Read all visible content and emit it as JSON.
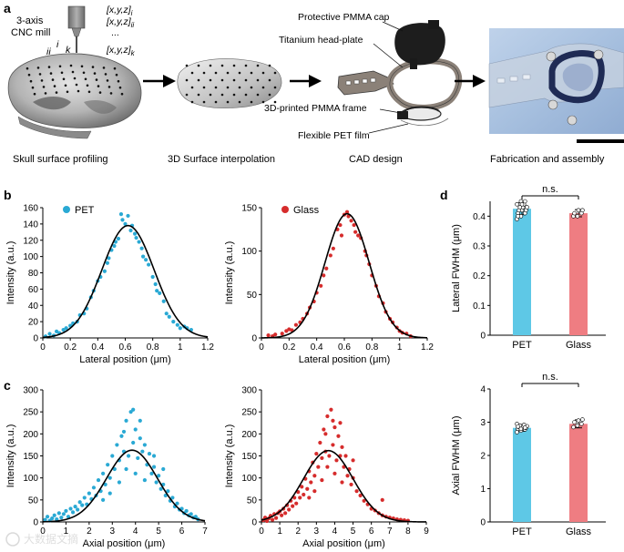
{
  "panel_a": {
    "label": "a",
    "cnc_label_line1": "3-axis",
    "cnc_label_line2": "CNC mill",
    "coords": [
      "[x,y,z]",
      "[x,y,z]",
      "...",
      "[x,y,z]"
    ],
    "coord_subscripts": [
      "i",
      "ii",
      "",
      "k"
    ],
    "point_labels": [
      "ii",
      "i",
      "k"
    ],
    "annotations": [
      "Protective PMMA cap",
      "Titanium head-plate",
      "3D-printed PMMA frame",
      "Flexible PET film"
    ],
    "captions": [
      "Skull surface profiling",
      "3D Surface interpolation",
      "CAD design",
      "Fabrication and assembly"
    ]
  },
  "panel_labels": {
    "b": "b",
    "c": "c",
    "d": "d"
  },
  "watermark": "大数据文摘",
  "colors": {
    "pet": "#2aa9d4",
    "glass": "#d62c2c",
    "pet_bar": "#5ec8e6",
    "glass_bar": "#ef7d82",
    "fit": "#000000"
  },
  "chart_data": [
    {
      "id": "b-pet",
      "type": "scatter",
      "legend": "PET",
      "xlabel": "Lateral position (μm)",
      "ylabel": "Intensity (a.u.)",
      "xlim": [
        0,
        1.2
      ],
      "ylim": [
        0,
        160
      ],
      "xticks": [
        "0",
        "0.2",
        "0.4",
        "0.6",
        "0.8",
        "1",
        "1.2"
      ],
      "yticks": [
        "0",
        "20",
        "40",
        "60",
        "80",
        "100",
        "120",
        "140",
        "160"
      ],
      "fit": {
        "amplitude": 138,
        "center": 0.62,
        "sigma": 0.19
      },
      "points": [
        [
          0.02,
          2
        ],
        [
          0.05,
          5
        ],
        [
          0.08,
          3
        ],
        [
          0.1,
          8
        ],
        [
          0.12,
          6
        ],
        [
          0.15,
          10
        ],
        [
          0.17,
          12
        ],
        [
          0.2,
          15
        ],
        [
          0.22,
          18
        ],
        [
          0.25,
          20
        ],
        [
          0.27,
          28
        ],
        [
          0.3,
          30
        ],
        [
          0.32,
          36
        ],
        [
          0.35,
          50
        ],
        [
          0.37,
          58
        ],
        [
          0.4,
          70
        ],
        [
          0.42,
          75
        ],
        [
          0.45,
          82
        ],
        [
          0.47,
          92
        ],
        [
          0.5,
          108
        ],
        [
          0.52,
          113
        ],
        [
          0.55,
          122
        ],
        [
          0.57,
          152
        ],
        [
          0.58,
          145
        ],
        [
          0.6,
          140
        ],
        [
          0.62,
          150
        ],
        [
          0.64,
          132
        ],
        [
          0.65,
          138
        ],
        [
          0.67,
          128
        ],
        [
          0.7,
          118
        ],
        [
          0.72,
          110
        ],
        [
          0.75,
          96
        ],
        [
          0.77,
          90
        ],
        [
          0.8,
          75
        ],
        [
          0.82,
          66
        ],
        [
          0.85,
          55
        ],
        [
          0.88,
          45
        ],
        [
          0.9,
          30
        ],
        [
          0.92,
          26
        ],
        [
          0.95,
          20
        ],
        [
          0.98,
          16
        ],
        [
          1.0,
          12
        ],
        [
          1.03,
          14
        ],
        [
          1.05,
          12
        ],
        [
          1.08,
          10
        ],
        [
          0.48,
          98
        ],
        [
          0.53,
          118
        ],
        [
          0.68,
          123
        ],
        [
          0.73,
          100
        ],
        [
          0.83,
          58
        ]
      ]
    },
    {
      "id": "b-glass",
      "type": "scatter",
      "legend": "Glass",
      "xlabel": "Lateral position (μm)",
      "ylabel": "Intensity (a.u.)",
      "xlim": [
        0,
        1.2
      ],
      "ylim": [
        0,
        150
      ],
      "xticks": [
        "0",
        "0.2",
        "0.4",
        "0.6",
        "0.8",
        "1",
        "1.2"
      ],
      "yticks": [
        "0",
        "50",
        "100",
        "150"
      ],
      "fit": {
        "amplitude": 143,
        "center": 0.62,
        "sigma": 0.16
      },
      "points": [
        [
          0.05,
          3
        ],
        [
          0.08,
          2
        ],
        [
          0.1,
          4
        ],
        [
          0.15,
          5
        ],
        [
          0.18,
          8
        ],
        [
          0.2,
          10
        ],
        [
          0.22,
          9
        ],
        [
          0.25,
          15
        ],
        [
          0.28,
          18
        ],
        [
          0.3,
          22
        ],
        [
          0.33,
          28
        ],
        [
          0.35,
          35
        ],
        [
          0.38,
          42
        ],
        [
          0.4,
          52
        ],
        [
          0.43,
          60
        ],
        [
          0.45,
          72
        ],
        [
          0.47,
          80
        ],
        [
          0.5,
          95
        ],
        [
          0.52,
          103
        ],
        [
          0.55,
          125
        ],
        [
          0.57,
          130
        ],
        [
          0.6,
          142
        ],
        [
          0.62,
          145
        ],
        [
          0.63,
          140
        ],
        [
          0.65,
          135
        ],
        [
          0.67,
          130
        ],
        [
          0.7,
          118
        ],
        [
          0.72,
          115
        ],
        [
          0.75,
          100
        ],
        [
          0.78,
          85
        ],
        [
          0.8,
          72
        ],
        [
          0.83,
          60
        ],
        [
          0.85,
          48
        ],
        [
          0.88,
          40
        ],
        [
          0.9,
          30
        ],
        [
          0.93,
          22
        ],
        [
          0.95,
          18
        ],
        [
          0.98,
          12
        ],
        [
          1.0,
          8
        ],
        [
          1.02,
          6
        ],
        [
          1.05,
          5
        ],
        [
          1.08,
          2
        ],
        [
          0.58,
          118
        ],
        [
          0.68,
          122
        ],
        [
          0.76,
          95
        ]
      ]
    },
    {
      "id": "c-pet",
      "type": "scatter",
      "xlabel": "Axial position (μm)",
      "ylabel": "Intensity (a.u.)",
      "xlim": [
        0,
        7
      ],
      "ylim": [
        0,
        300
      ],
      "xticks": [
        "0",
        "1",
        "2",
        "3",
        "4",
        "5",
        "6",
        "7"
      ],
      "yticks": [
        "0",
        "50",
        "100",
        "150",
        "200",
        "250",
        "300"
      ],
      "fit": {
        "amplitude": 163,
        "center": 3.85,
        "sigma": 1.1
      },
      "points": [
        [
          0.1,
          5
        ],
        [
          0.2,
          12
        ],
        [
          0.3,
          3
        ],
        [
          0.4,
          8
        ],
        [
          0.5,
          15
        ],
        [
          0.6,
          6
        ],
        [
          0.7,
          20
        ],
        [
          0.8,
          10
        ],
        [
          0.9,
          18
        ],
        [
          1.0,
          25
        ],
        [
          1.1,
          12
        ],
        [
          1.2,
          30
        ],
        [
          1.3,
          22
        ],
        [
          1.4,
          35
        ],
        [
          1.5,
          28
        ],
        [
          1.6,
          45
        ],
        [
          1.7,
          38
        ],
        [
          1.8,
          55
        ],
        [
          1.9,
          40
        ],
        [
          2.0,
          65
        ],
        [
          2.1,
          52
        ],
        [
          2.2,
          78
        ],
        [
          2.3,
          60
        ],
        [
          2.4,
          95
        ],
        [
          2.5,
          70
        ],
        [
          2.6,
          110
        ],
        [
          2.7,
          85
        ],
        [
          2.8,
          130
        ],
        [
          2.9,
          100
        ],
        [
          3.0,
          150
        ],
        [
          3.1,
          120
        ],
        [
          3.2,
          175
        ],
        [
          3.3,
          140
        ],
        [
          3.4,
          195
        ],
        [
          3.5,
          160
        ],
        [
          3.6,
          230
        ],
        [
          3.7,
          150
        ],
        [
          3.8,
          250
        ],
        [
          3.9,
          180
        ],
        [
          4.0,
          210
        ],
        [
          4.1,
          145
        ],
        [
          4.2,
          190
        ],
        [
          4.3,
          160
        ],
        [
          4.4,
          175
        ],
        [
          4.5,
          130
        ],
        [
          4.6,
          155
        ],
        [
          4.7,
          110
        ],
        [
          4.8,
          125
        ],
        [
          4.9,
          90
        ],
        [
          5.0,
          105
        ],
        [
          5.1,
          75
        ],
        [
          5.2,
          85
        ],
        [
          5.3,
          60
        ],
        [
          5.4,
          70
        ],
        [
          5.5,
          48
        ],
        [
          5.6,
          55
        ],
        [
          5.7,
          35
        ],
        [
          5.8,
          42
        ],
        [
          5.9,
          28
        ],
        [
          6.0,
          30
        ],
        [
          6.1,
          20
        ],
        [
          6.2,
          25
        ],
        [
          6.3,
          15
        ],
        [
          6.4,
          18
        ],
        [
          6.5,
          10
        ],
        [
          6.6,
          12
        ],
        [
          6.7,
          6
        ],
        [
          3.3,
          90
        ],
        [
          3.6,
          120
        ],
        [
          4.0,
          110
        ],
        [
          4.4,
          95
        ],
        [
          2.9,
          65
        ],
        [
          3.9,
          255
        ],
        [
          4.2,
          230
        ],
        [
          3.5,
          205
        ],
        [
          4.8,
          150
        ],
        [
          2.6,
          50
        ],
        [
          5.2,
          120
        ]
      ]
    },
    {
      "id": "c-glass",
      "type": "scatter",
      "xlabel": "Axial position (μm)",
      "ylabel": "Intensity (a.u.)",
      "xlim": [
        0,
        9
      ],
      "ylim": [
        0,
        300
      ],
      "xticks": [
        "0",
        "1",
        "2",
        "3",
        "4",
        "5",
        "6",
        "7",
        "8",
        "9"
      ],
      "yticks": [
        "0",
        "50",
        "100",
        "150",
        "200",
        "250",
        "300"
      ],
      "fit": {
        "amplitude": 162,
        "center": 3.65,
        "sigma": 1.35
      },
      "points": [
        [
          0.1,
          4
        ],
        [
          0.2,
          10
        ],
        [
          0.3,
          2
        ],
        [
          0.4,
          8
        ],
        [
          0.5,
          14
        ],
        [
          0.6,
          5
        ],
        [
          0.7,
          18
        ],
        [
          0.8,
          9
        ],
        [
          0.9,
          20
        ],
        [
          1.0,
          24
        ],
        [
          1.1,
          15
        ],
        [
          1.2,
          30
        ],
        [
          1.3,
          20
        ],
        [
          1.4,
          38
        ],
        [
          1.5,
          28
        ],
        [
          1.6,
          48
        ],
        [
          1.7,
          36
        ],
        [
          1.8,
          55
        ],
        [
          1.9,
          42
        ],
        [
          2.0,
          68
        ],
        [
          2.1,
          55
        ],
        [
          2.2,
          80
        ],
        [
          2.3,
          62
        ],
        [
          2.4,
          98
        ],
        [
          2.5,
          75
        ],
        [
          2.6,
          115
        ],
        [
          2.7,
          90
        ],
        [
          2.8,
          135
        ],
        [
          2.9,
          105
        ],
        [
          3.0,
          155
        ],
        [
          3.1,
          125
        ],
        [
          3.2,
          180
        ],
        [
          3.3,
          145
        ],
        [
          3.4,
          210
        ],
        [
          3.5,
          160
        ],
        [
          3.6,
          240
        ],
        [
          3.7,
          150
        ],
        [
          3.8,
          255
        ],
        [
          3.9,
          175
        ],
        [
          4.0,
          215
        ],
        [
          4.1,
          140
        ],
        [
          4.2,
          195
        ],
        [
          4.3,
          150
        ],
        [
          4.4,
          170
        ],
        [
          4.5,
          125
        ],
        [
          4.6,
          150
        ],
        [
          4.7,
          105
        ],
        [
          4.8,
          120
        ],
        [
          4.9,
          85
        ],
        [
          5.0,
          100
        ],
        [
          5.2,
          70
        ],
        [
          5.4,
          60
        ],
        [
          5.6,
          48
        ],
        [
          5.8,
          40
        ],
        [
          6.0,
          30
        ],
        [
          6.2,
          26
        ],
        [
          6.4,
          20
        ],
        [
          6.6,
          15
        ],
        [
          6.8,
          12
        ],
        [
          7.0,
          10
        ],
        [
          7.2,
          8
        ],
        [
          7.4,
          6
        ],
        [
          7.6,
          5
        ],
        [
          7.8,
          4
        ],
        [
          8.0,
          3
        ],
        [
          3.3,
          95
        ],
        [
          3.6,
          125
        ],
        [
          4.0,
          110
        ],
        [
          4.4,
          90
        ],
        [
          2.9,
          70
        ],
        [
          3.9,
          230
        ],
        [
          4.3,
          225
        ],
        [
          3.5,
          200
        ],
        [
          5.0,
          140
        ],
        [
          2.6,
          55
        ],
        [
          6.6,
          50
        ]
      ]
    },
    {
      "id": "d-lateral",
      "type": "bar",
      "categories": [
        "PET",
        "Glass"
      ],
      "values": [
        0.425,
        0.41
      ],
      "errors": [
        0.02,
        0.012
      ],
      "ylabel": "Lateral FWHM (μm)",
      "ylim": [
        0,
        0.45
      ],
      "yticks": [
        "0",
        "0.1",
        "0.2",
        "0.3",
        "0.4"
      ],
      "annotation": "n.s.",
      "individual_points": [
        [
          0.39,
          0.4,
          0.41,
          0.41,
          0.42,
          0.42,
          0.42,
          0.43,
          0.43,
          0.43,
          0.44,
          0.44,
          0.45,
          0.45,
          0.4,
          0.44
        ],
        [
          0.4,
          0.4,
          0.41,
          0.41,
          0.42,
          0.42
        ]
      ]
    },
    {
      "id": "d-axial",
      "type": "bar",
      "categories": [
        "PET",
        "Glass"
      ],
      "values": [
        2.83,
        2.95
      ],
      "errors": [
        0.1,
        0.12
      ],
      "ylabel": "Axial FWHM (μm)",
      "ylim": [
        0,
        4
      ],
      "yticks": [
        "0",
        "1",
        "2",
        "3",
        "4"
      ],
      "annotation": "n.s.",
      "individual_points": [
        [
          2.7,
          2.75,
          2.78,
          2.8,
          2.82,
          2.83,
          2.85,
          2.86,
          2.88,
          2.9,
          2.92,
          2.95,
          2.8,
          2.84,
          2.87
        ],
        [
          2.85,
          2.9,
          2.95,
          3.0,
          3.05,
          3.08
        ]
      ]
    }
  ]
}
